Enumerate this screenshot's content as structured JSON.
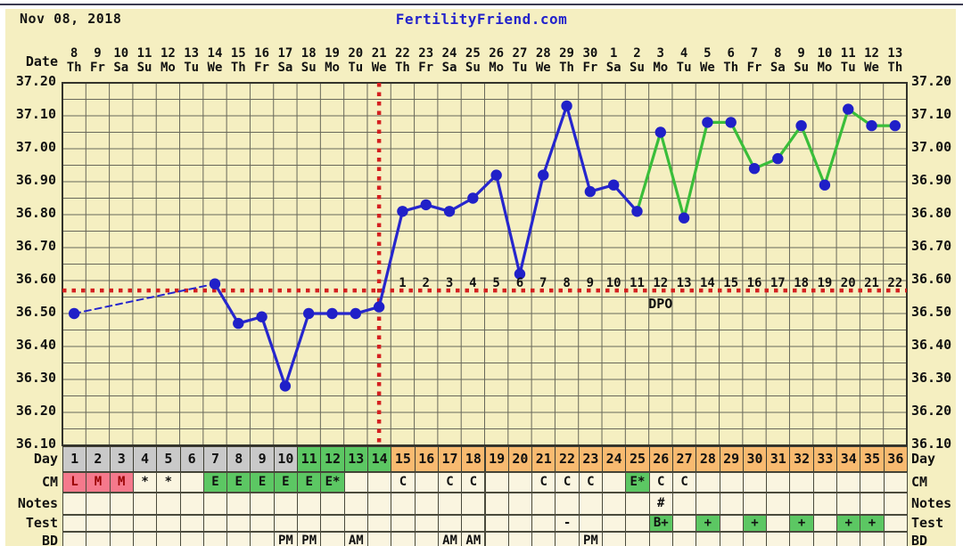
{
  "header": {
    "date_label": "Nov 08, 2018",
    "title": "FertilityFriend.com"
  },
  "axis": {
    "date_caption": "Date",
    "y_ticks": [
      "37.20",
      "37.10",
      "37.00",
      "36.90",
      "36.80",
      "36.70",
      "36.60",
      "36.50",
      "36.40",
      "36.30",
      "36.20",
      "36.10"
    ]
  },
  "calendar": {
    "dates": [
      "8",
      "9",
      "10",
      "11",
      "12",
      "13",
      "14",
      "15",
      "16",
      "17",
      "18",
      "19",
      "20",
      "21",
      "22",
      "23",
      "24",
      "25",
      "26",
      "27",
      "28",
      "29",
      "30",
      "1",
      "2",
      "3",
      "4",
      "5",
      "6",
      "7",
      "8",
      "9",
      "10",
      "11",
      "12",
      "13"
    ],
    "dows": [
      "Th",
      "Fr",
      "Sa",
      "Su",
      "Mo",
      "Tu",
      "We",
      "Th",
      "Fr",
      "Sa",
      "Su",
      "Mo",
      "Tu",
      "We",
      "Th",
      "Fr",
      "Sa",
      "Su",
      "Mo",
      "Tu",
      "We",
      "Th",
      "Fr",
      "Sa",
      "Su",
      "Mo",
      "Tu",
      "We",
      "Th",
      "Fr",
      "Sa",
      "Su",
      "Mo",
      "Tu",
      "We",
      "Th"
    ]
  },
  "chart_data": {
    "type": "line",
    "title": "FertilityFriend.com",
    "x_unit": "cycle_day",
    "days": [
      1,
      2,
      3,
      4,
      5,
      6,
      7,
      8,
      9,
      10,
      11,
      12,
      13,
      14,
      15,
      16,
      17,
      18,
      19,
      20,
      21,
      22,
      23,
      24,
      25,
      26,
      27,
      28,
      29,
      30,
      31,
      32,
      33,
      34,
      35,
      36
    ],
    "temps_c": [
      36.5,
      null,
      null,
      null,
      null,
      null,
      36.59,
      36.47,
      36.49,
      36.28,
      36.5,
      36.5,
      36.5,
      36.52,
      36.81,
      36.83,
      36.81,
      36.85,
      36.92,
      36.62,
      36.92,
      37.13,
      36.87,
      36.89,
      36.81,
      37.05,
      36.79,
      37.08,
      37.08,
      36.94,
      36.97,
      37.07,
      36.89,
      37.12,
      37.07,
      37.07
    ],
    "missing_days_interpolated": [
      2,
      3,
      4,
      5,
      6
    ],
    "ylim": [
      36.1,
      37.2
    ],
    "tick_step": 0.1,
    "grid_step": 0.05,
    "coverline_temp": 36.57,
    "ovulation_day": 14,
    "dpo_first_day": 15,
    "dpo_labels": [
      "1",
      "2",
      "3",
      "4",
      "5",
      "6",
      "7",
      "8",
      "9",
      "10",
      "11",
      "12",
      "13",
      "14",
      "15",
      "16",
      "17",
      "18",
      "19",
      "20",
      "21",
      "22"
    ],
    "dpo_caption": "DPO",
    "line_segments": [
      {
        "name": "pre-ovulation-interpolated",
        "style": "dashed",
        "color_key": "line_blue",
        "from_day": 1,
        "to_day": 7
      },
      {
        "name": "pre-post-ovulation",
        "style": "solid",
        "color_key": "line_blue",
        "from_day": 7,
        "to_day": 25
      },
      {
        "name": "pregnancy-test-positive",
        "style": "solid",
        "color_key": "line_green",
        "from_day": 25,
        "to_day": 36
      }
    ]
  },
  "rows": [
    {
      "key": "day",
      "label": "Day",
      "values": [
        "1",
        "2",
        "3",
        "4",
        "5",
        "6",
        "7",
        "8",
        "9",
        "10",
        "11",
        "12",
        "13",
        "14",
        "15",
        "16",
        "17",
        "18",
        "19",
        "20",
        "21",
        "22",
        "23",
        "24",
        "25",
        "26",
        "27",
        "28",
        "29",
        "30",
        "31",
        "32",
        "33",
        "34",
        "35",
        "36"
      ],
      "bgs": [
        "gray",
        "gray",
        "gray",
        "gray",
        "gray",
        "gray",
        "gray",
        "gray",
        "gray",
        "gray",
        "green",
        "green",
        "green",
        "green",
        "orange",
        "orange",
        "orange",
        "orange",
        "orange",
        "orange",
        "orange",
        "orange",
        "orange",
        "orange",
        "orange",
        "orange",
        "orange",
        "orange",
        "orange",
        "orange",
        "orange",
        "orange",
        "orange",
        "orange",
        "orange",
        "orange"
      ]
    },
    {
      "key": "cm",
      "label": "CM",
      "values": [
        "L",
        "M",
        "M",
        "*",
        "*",
        "",
        "E",
        "E",
        "E",
        "E",
        "E",
        "E*",
        "",
        "",
        "C",
        "",
        "C",
        "C",
        "",
        "",
        "C",
        "C",
        "C",
        "",
        "E*",
        "C",
        "C",
        "",
        "",
        "",
        "",
        "",
        "",
        "",
        "",
        ""
      ],
      "bgs": [
        "pink",
        "pink",
        "pink",
        "cream",
        "cream",
        "cream",
        "green",
        "green",
        "green",
        "green",
        "green",
        "green",
        "cream",
        "cream",
        "cream",
        "cream",
        "cream",
        "cream",
        "cream",
        "cream",
        "cream",
        "cream",
        "cream",
        "cream",
        "green",
        "cream",
        "cream",
        "cream",
        "cream",
        "cream",
        "cream",
        "cream",
        "cream",
        "cream",
        "cream",
        "cream"
      ]
    },
    {
      "key": "notes",
      "label": "Notes",
      "values": [
        "",
        "",
        "",
        "",
        "",
        "",
        "",
        "",
        "",
        "",
        "",
        "",
        "",
        "",
        "",
        "",
        "",
        "",
        "",
        "",
        "",
        "",
        "",
        "",
        "",
        "#",
        "",
        "",
        "",
        "",
        "",
        "",
        "",
        "",
        "",
        ""
      ],
      "bgs": [
        "cream",
        "cream",
        "cream",
        "cream",
        "cream",
        "cream",
        "cream",
        "cream",
        "cream",
        "cream",
        "cream",
        "cream",
        "cream",
        "cream",
        "cream",
        "cream",
        "cream",
        "cream",
        "cream",
        "cream",
        "cream",
        "cream",
        "cream",
        "cream",
        "cream",
        "cream",
        "cream",
        "cream",
        "cream",
        "cream",
        "cream",
        "cream",
        "cream",
        "cream",
        "cream",
        "cream"
      ]
    },
    {
      "key": "test",
      "label": "Test",
      "values": [
        "",
        "",
        "",
        "",
        "",
        "",
        "",
        "",
        "",
        "",
        "",
        "",
        "",
        "",
        "",
        "",
        "",
        "",
        "",
        "",
        "",
        "-",
        "",
        "",
        "",
        "B+",
        "",
        "+",
        "",
        "+",
        "",
        "+",
        "",
        "+",
        "+",
        ""
      ],
      "bgs": [
        "cream",
        "cream",
        "cream",
        "cream",
        "cream",
        "cream",
        "cream",
        "cream",
        "cream",
        "cream",
        "cream",
        "cream",
        "cream",
        "cream",
        "cream",
        "cream",
        "cream",
        "cream",
        "cream",
        "cream",
        "cream",
        "cream",
        "cream",
        "cream",
        "cream",
        "green",
        "cream",
        "green",
        "cream",
        "green",
        "cream",
        "green",
        "cream",
        "green",
        "green",
        "cream"
      ]
    },
    {
      "key": "bd",
      "label": "BD",
      "values": [
        "",
        "",
        "",
        "",
        "",
        "",
        "",
        "",
        "",
        "PM",
        "PM",
        "",
        "AM",
        "",
        "",
        "",
        "AM",
        "AM",
        "",
        "",
        "",
        "",
        "PM",
        "",
        "",
        "",
        "",
        "",
        "",
        "",
        "",
        "",
        "",
        "",
        "",
        ""
      ],
      "bgs": [
        "cream",
        "cream",
        "cream",
        "cream",
        "cream",
        "cream",
        "cream",
        "cream",
        "cream",
        "cream",
        "cream",
        "cream",
        "cream",
        "cream",
        "cream",
        "cream",
        "cream",
        "cream",
        "cream",
        "cream",
        "cream",
        "cream",
        "cream",
        "cream",
        "cream",
        "cream",
        "cream",
        "cream",
        "cream",
        "cream",
        "cream",
        "cream",
        "cream",
        "cream",
        "cream",
        "cream"
      ]
    }
  ],
  "colors": {
    "page_bg": "#ffffff",
    "chart_bg": "#F5EFC1",
    "cream": "#FAF5E0",
    "gray": "#C9C9C9",
    "green": "#5CC763",
    "orange": "#F8BA70",
    "pink": "#F5798C",
    "pink_text": "#990000",
    "grid": "#68685A",
    "plot_border": "#33332B",
    "line_blue": "#2626CD",
    "line_green": "#3ABE3A",
    "dot_blue": "#2020C8",
    "red": "#D42020",
    "title_blue": "#2323CB",
    "text": "#111111"
  }
}
